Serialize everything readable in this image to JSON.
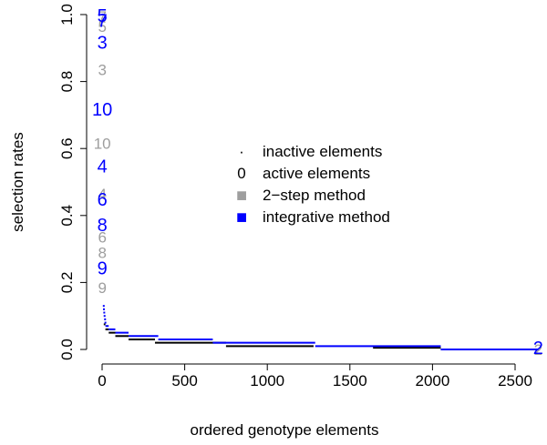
{
  "chart_data": {
    "type": "scatter",
    "xlabel": "ordered genotype elements",
    "ylabel": "selection rates",
    "xlim": [
      0,
      2650
    ],
    "ylim": [
      0,
      1.0
    ],
    "x_ticks": [
      0,
      500,
      1000,
      1500,
      2000,
      2500
    ],
    "y_ticks": [
      0.0,
      0.2,
      0.4,
      0.6,
      0.8,
      1.0
    ],
    "legend": {
      "position": "center",
      "entries": [
        {
          "symbol": "·",
          "label": "inactive elements",
          "color": "#000000"
        },
        {
          "symbol": "0",
          "label": "active elements",
          "color": "#000000"
        },
        {
          "symbol": "■",
          "label": "2−step method",
          "color": "#9e9e9e"
        },
        {
          "symbol": "■",
          "label": "integrative method",
          "color": "#0000ff"
        }
      ]
    },
    "series": [
      {
        "name": "2−step method",
        "color": "#9e9e9e",
        "active_labels": [
          {
            "label": "7",
            "x": 1,
            "y": 0.995
          },
          {
            "label": "5",
            "x": 1,
            "y": 0.965
          },
          {
            "label": "3",
            "x": 1,
            "y": 0.835
          },
          {
            "label": "10",
            "x": 1,
            "y": 0.615
          },
          {
            "label": "4",
            "x": 1,
            "y": 0.465
          },
          {
            "label": "6",
            "x": 1,
            "y": 0.335
          },
          {
            "label": "8",
            "x": 1,
            "y": 0.29
          },
          {
            "label": "9",
            "x": 1,
            "y": 0.185
          },
          {
            "label": "2",
            "x": 2640,
            "y": 0.0
          }
        ],
        "inactive_steps": [
          {
            "x0": 10,
            "x1": 20,
            "y": 0.075
          },
          {
            "x0": 20,
            "x1": 40,
            "y": 0.06
          },
          {
            "x0": 40,
            "x1": 80,
            "y": 0.05
          },
          {
            "x0": 80,
            "x1": 160,
            "y": 0.04
          },
          {
            "x0": 160,
            "x1": 320,
            "y": 0.03
          },
          {
            "x0": 320,
            "x1": 750,
            "y": 0.02
          },
          {
            "x0": 750,
            "x1": 1280,
            "y": 0.01
          },
          {
            "x0": 1640,
            "x1": 2050,
            "y": 0.005
          },
          {
            "x0": 2050,
            "x1": 2640,
            "y": 0.0
          }
        ]
      },
      {
        "name": "integrative method",
        "color": "#0000ff",
        "active_labels": [
          {
            "label": "5",
            "x": 1,
            "y": 0.995
          },
          {
            "label": "7",
            "x": 1,
            "y": 0.98
          },
          {
            "label": "3",
            "x": 1,
            "y": 0.915
          },
          {
            "label": "10",
            "x": 1,
            "y": 0.715
          },
          {
            "label": "4",
            "x": 1,
            "y": 0.545
          },
          {
            "label": "6",
            "x": 1,
            "y": 0.445
          },
          {
            "label": "8",
            "x": 1,
            "y": 0.37
          },
          {
            "label": "9",
            "x": 1,
            "y": 0.24
          },
          {
            "label": "2",
            "x": 2640,
            "y": 0.003
          }
        ],
        "inactive_dots": [
          {
            "x": 10,
            "y": 0.13
          },
          {
            "x": 11,
            "y": 0.12
          },
          {
            "x": 13,
            "y": 0.11
          },
          {
            "x": 15,
            "y": 0.1
          },
          {
            "x": 18,
            "y": 0.09
          },
          {
            "x": 20,
            "y": 0.08
          }
        ],
        "inactive_steps": [
          {
            "x0": 20,
            "x1": 40,
            "y": 0.07
          },
          {
            "x0": 40,
            "x1": 80,
            "y": 0.06
          },
          {
            "x0": 80,
            "x1": 160,
            "y": 0.05
          },
          {
            "x0": 160,
            "x1": 340,
            "y": 0.04
          },
          {
            "x0": 340,
            "x1": 670,
            "y": 0.03
          },
          {
            "x0": 670,
            "x1": 1290,
            "y": 0.02
          },
          {
            "x0": 1290,
            "x1": 2050,
            "y": 0.01
          },
          {
            "x0": 2050,
            "x1": 2640,
            "y": 0.0
          }
        ]
      }
    ]
  }
}
